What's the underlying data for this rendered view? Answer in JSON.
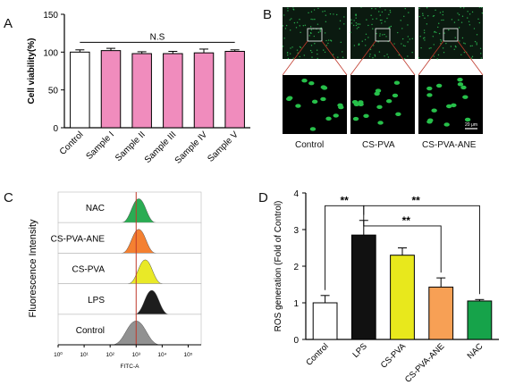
{
  "panels": {
    "a": "A",
    "b": "B",
    "c": "C",
    "d": "D"
  },
  "chart_data": [
    {
      "panel": "A",
      "type": "bar",
      "ylabel": "Cell viability(%)",
      "xlabel": "",
      "ylim": [
        0,
        150
      ],
      "yticks": [
        "0",
        "50",
        "100",
        "150"
      ],
      "categories": [
        "Control",
        "Sample I",
        "Sample II",
        "Sample III",
        "Sample IV",
        "Sample V"
      ],
      "values": [
        100,
        102,
        98,
        98,
        99,
        101
      ],
      "errors": [
        3,
        3,
        2.5,
        3,
        5,
        2
      ],
      "colors": [
        "#ffffff",
        "#f08cbd",
        "#f08cbd",
        "#f08cbd",
        "#f08cbd",
        "#f08cbd"
      ],
      "annotation": "N.S"
    },
    {
      "panel": "C",
      "type": "area",
      "ylabel": "Fluorescence Intensity",
      "xlabel": "FITC-A",
      "xscale": "log",
      "xticks": [
        "10⁰",
        "10¹",
        "10²",
        "10³",
        "10⁴",
        "10⁵"
      ],
      "series": [
        {
          "name": "NAC",
          "peak_log": 3.1,
          "color": "#1fa84a"
        },
        {
          "name": "CS-PVA-ANE",
          "peak_log": 3.1,
          "color": "#f47a26"
        },
        {
          "name": "CS-PVA",
          "peak_log": 3.35,
          "color": "#e8e81c"
        },
        {
          "name": "LPS",
          "peak_log": 3.6,
          "color": "#111111"
        },
        {
          "name": "Control",
          "peak_log": 3.0,
          "color": "#8c8c8c"
        }
      ]
    },
    {
      "panel": "D",
      "type": "bar",
      "ylabel": "ROS generation (Fold of Control)",
      "xlabel": "",
      "ylim": [
        0,
        4
      ],
      "yticks": [
        "0",
        "1",
        "2",
        "3",
        "4"
      ],
      "categories": [
        "Control",
        "LPS",
        "CS-PVA",
        "CS-PVA-ANE",
        "NAC"
      ],
      "values": [
        1.0,
        2.85,
        2.3,
        1.43,
        1.05
      ],
      "errors": [
        0.2,
        0.4,
        0.2,
        0.25,
        0.04
      ],
      "colors": [
        "#ffffff",
        "#111111",
        "#e8e81c",
        "#f7a055",
        "#16a34a"
      ],
      "significance": [
        {
          "from": 0,
          "to": 1,
          "label": "**"
        },
        {
          "from": 1,
          "to": 3,
          "label": "**"
        },
        {
          "from": 1,
          "to": 4,
          "label": "**"
        }
      ]
    }
  ],
  "micrographs": {
    "labels": [
      "Control",
      "CS-PVA",
      "CS-PVA-ANE"
    ],
    "scalebar": "20 μm"
  }
}
